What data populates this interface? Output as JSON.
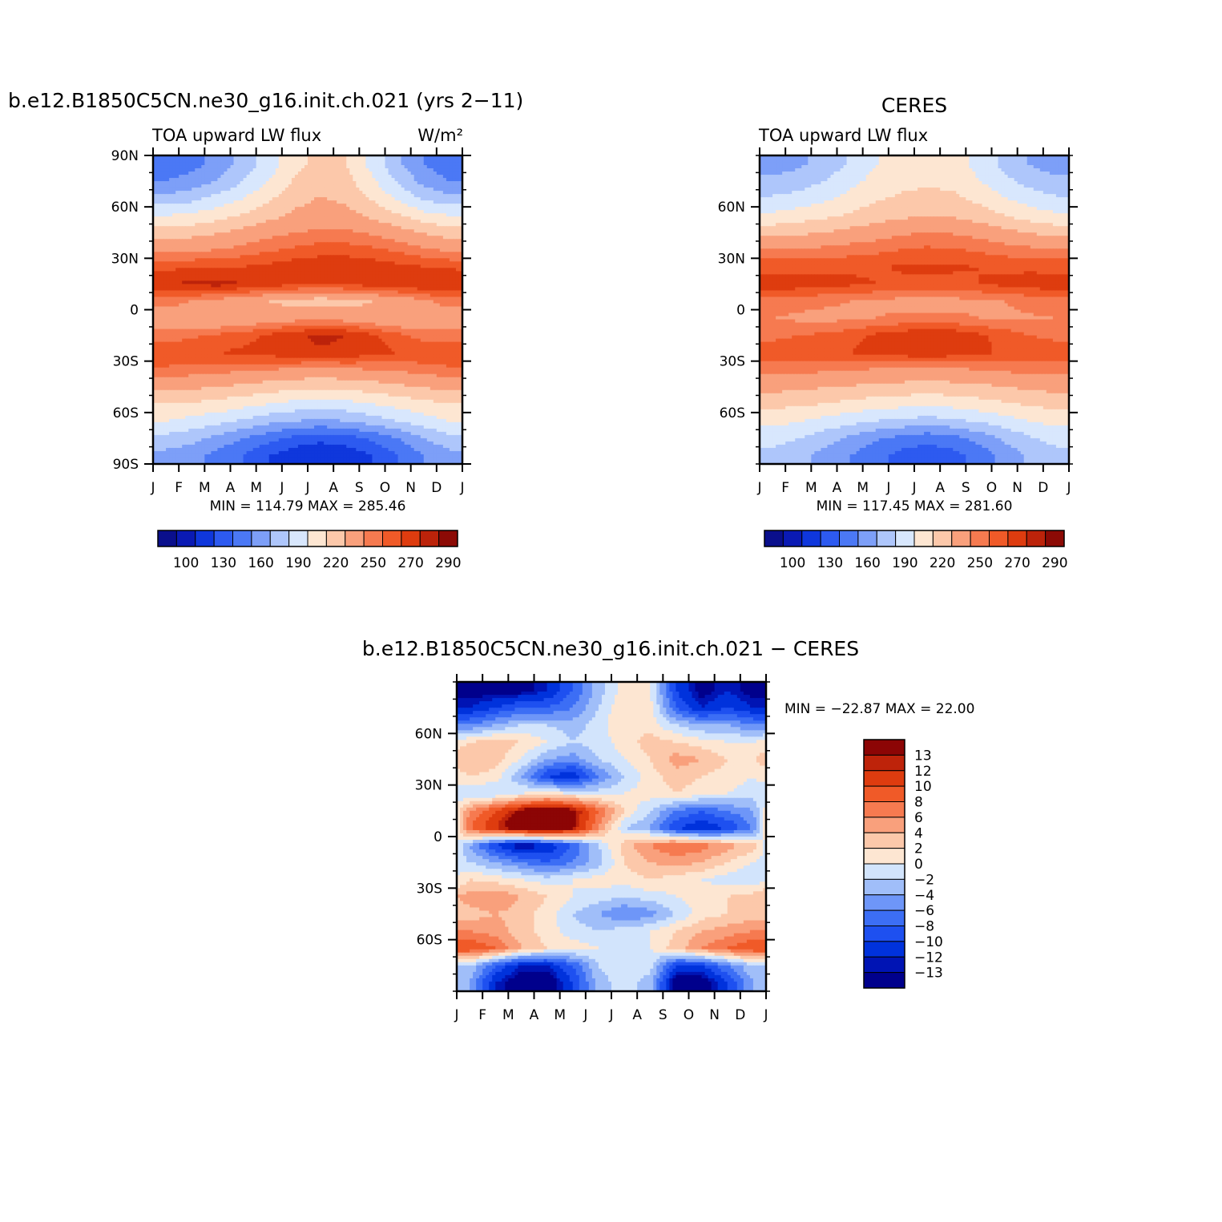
{
  "panels": {
    "model": {
      "title": "b.e12.B1850C5CN.ne30_g16.init.ch.021 (yrs 2−11)",
      "left_label": "TOA upward LW flux",
      "units_label": "W/m²",
      "minmax": "MIN = 114.79 MAX = 285.46"
    },
    "obs": {
      "title": "CERES",
      "left_label": "TOA upward LW flux",
      "minmax": "MIN = 117.45 MAX = 281.60"
    },
    "diff": {
      "title": "b.e12.B1850C5CN.ne30_g16.init.ch.021 − CERES",
      "minmax": "MIN = −22.87 MAX =  22.00"
    }
  },
  "chart_data": [
    {
      "type": "heatmap",
      "title": "b.e12.B1850C5CN.ne30_g16.init.ch.021 (yrs 2−11)",
      "subtitle": "TOA upward LW flux",
      "units": "W/m²",
      "x_tick_labels": [
        "J",
        "F",
        "M",
        "A",
        "M",
        "J",
        "J",
        "A",
        "S",
        "O",
        "N",
        "D",
        "J"
      ],
      "y_tick_labels": [
        "90S",
        "60S",
        "30S",
        "0",
        "30N",
        "60N",
        "90N"
      ],
      "y_tick_values": [
        -90,
        -60,
        -30,
        0,
        30,
        60,
        90
      ],
      "xlim": [
        0,
        12
      ],
      "ylim": [
        -90,
        90
      ],
      "min": 114.79,
      "max": 285.46,
      "colorbar_labels": [
        "100",
        "130",
        "160",
        "190",
        "220",
        "250",
        "270",
        "290"
      ],
      "months": [
        "Jan",
        "Feb",
        "Mar",
        "Apr",
        "May",
        "Jun",
        "Jul",
        "Aug",
        "Sep",
        "Oct",
        "Nov",
        "Dec"
      ],
      "latitudes": [
        -85,
        -75,
        -65,
        -55,
        -45,
        -35,
        -25,
        -15,
        -5,
        5,
        15,
        25,
        35,
        45,
        55,
        65,
        75,
        85
      ],
      "values": [
        [
          170,
          165,
          155,
          145,
          130,
          120,
          115,
          120,
          130,
          145,
          160,
          170
        ],
        [
          185,
          180,
          170,
          160,
          150,
          140,
          135,
          138,
          148,
          160,
          175,
          185
        ],
        [
          205,
          200,
          195,
          188,
          180,
          175,
          172,
          175,
          182,
          190,
          198,
          205
        ],
        [
          220,
          218,
          215,
          210,
          205,
          200,
          198,
          200,
          205,
          210,
          215,
          220
        ],
        [
          240,
          238,
          235,
          232,
          228,
          225,
          223,
          225,
          228,
          232,
          236,
          240
        ],
        [
          258,
          256,
          254,
          252,
          250,
          248,
          246,
          248,
          250,
          252,
          255,
          258
        ],
        [
          268,
          268,
          270,
          272,
          275,
          278,
          279,
          278,
          274,
          270,
          268,
          268
        ],
        [
          255,
          258,
          262,
          266,
          272,
          278,
          282,
          280,
          272,
          263,
          256,
          254
        ],
        [
          242,
          238,
          235,
          238,
          242,
          245,
          246,
          244,
          240,
          236,
          238,
          242
        ],
        [
          255,
          250,
          245,
          240,
          235,
          230,
          228,
          230,
          235,
          240,
          248,
          255
        ],
        [
          280,
          282,
          284,
          280,
          276,
          272,
          270,
          272,
          275,
          278,
          280,
          281
        ],
        [
          268,
          268,
          268,
          270,
          273,
          276,
          278,
          278,
          276,
          273,
          270,
          268
        ],
        [
          248,
          248,
          250,
          254,
          258,
          262,
          265,
          265,
          262,
          258,
          252,
          248
        ],
        [
          228,
          230,
          234,
          240,
          246,
          250,
          252,
          252,
          248,
          242,
          234,
          228
        ],
        [
          205,
          208,
          214,
          222,
          230,
          238,
          242,
          240,
          232,
          222,
          210,
          205
        ],
        [
          180,
          185,
          195,
          205,
          218,
          230,
          236,
          232,
          218,
          202,
          188,
          180
        ],
        [
          160,
          165,
          175,
          190,
          205,
          222,
          230,
          225,
          208,
          188,
          170,
          160
        ],
        [
          150,
          155,
          165,
          180,
          198,
          215,
          225,
          220,
          200,
          178,
          160,
          150
        ]
      ]
    },
    {
      "type": "heatmap",
      "title": "CERES",
      "subtitle": "TOA upward LW flux",
      "x_tick_labels": [
        "J",
        "F",
        "M",
        "A",
        "M",
        "J",
        "J",
        "A",
        "S",
        "O",
        "N",
        "D",
        "J"
      ],
      "y_tick_labels": [
        "60S",
        "30S",
        "0",
        "30N",
        "60N"
      ],
      "y_tick_values": [
        -60,
        -30,
        0,
        30,
        60
      ],
      "xlim": [
        0,
        12
      ],
      "ylim": [
        -90,
        90
      ],
      "min": 117.45,
      "max": 281.6,
      "colorbar_labels": [
        "100",
        "130",
        "160",
        "190",
        "220",
        "250",
        "270",
        "290"
      ],
      "months": [
        "Jan",
        "Feb",
        "Mar",
        "Apr",
        "May",
        "Jun",
        "Jul",
        "Aug",
        "Sep",
        "Oct",
        "Nov",
        "Dec"
      ],
      "latitudes": [
        -85,
        -75,
        -65,
        -55,
        -45,
        -35,
        -25,
        -15,
        -5,
        5,
        15,
        25,
        35,
        45,
        55,
        65,
        75,
        85
      ],
      "values": [
        [
          185,
          180,
          170,
          160,
          150,
          140,
          135,
          140,
          150,
          165,
          178,
          185
        ],
        [
          195,
          190,
          182,
          172,
          162,
          155,
          150,
          155,
          165,
          178,
          188,
          195
        ],
        [
          210,
          206,
          200,
          195,
          190,
          186,
          184,
          186,
          192,
          198,
          205,
          210
        ],
        [
          225,
          222,
          220,
          216,
          212,
          210,
          208,
          210,
          214,
          218,
          222,
          225
        ],
        [
          240,
          238,
          236,
          234,
          232,
          230,
          229,
          230,
          232,
          235,
          238,
          240
        ],
        [
          255,
          254,
          252,
          250,
          249,
          248,
          247,
          248,
          250,
          252,
          254,
          255
        ],
        [
          264,
          265,
          267,
          270,
          274,
          276,
          277,
          276,
          273,
          268,
          265,
          264
        ],
        [
          258,
          260,
          262,
          266,
          272,
          276,
          280,
          278,
          272,
          266,
          260,
          258
        ],
        [
          250,
          248,
          247,
          248,
          250,
          252,
          253,
          252,
          250,
          248,
          249,
          250
        ],
        [
          255,
          254,
          252,
          250,
          248,
          246,
          245,
          246,
          248,
          250,
          253,
          255
        ],
        [
          277,
          276,
          274,
          272,
          270,
          268,
          268,
          268,
          270,
          273,
          276,
          277
        ],
        [
          266,
          266,
          267,
          268,
          269,
          271,
          272,
          271,
          270,
          268,
          267,
          266
        ],
        [
          252,
          252,
          253,
          255,
          257,
          260,
          262,
          261,
          258,
          255,
          253,
          252
        ],
        [
          230,
          232,
          235,
          240,
          244,
          248,
          250,
          249,
          246,
          240,
          234,
          230
        ],
        [
          208,
          212,
          216,
          222,
          228,
          232,
          234,
          233,
          228,
          220,
          212,
          208
        ],
        [
          192,
          196,
          202,
          210,
          218,
          222,
          224,
          223,
          216,
          206,
          198,
          192
        ],
        [
          178,
          182,
          190,
          200,
          210,
          216,
          218,
          216,
          206,
          194,
          184,
          178
        ],
        [
          168,
          172,
          180,
          192,
          204,
          212,
          215,
          212,
          200,
          186,
          174,
          168
        ]
      ]
    },
    {
      "type": "heatmap",
      "title": "b.e12.B1850C5CN.ne30_g16.init.ch.021 − CERES",
      "x_tick_labels": [
        "J",
        "F",
        "M",
        "A",
        "M",
        "J",
        "J",
        "A",
        "S",
        "O",
        "N",
        "D",
        "J"
      ],
      "y_tick_labels": [
        "60S",
        "30S",
        "0",
        "30N",
        "60N"
      ],
      "y_tick_values": [
        -60,
        -30,
        0,
        30,
        60
      ],
      "xlim": [
        0,
        12
      ],
      "ylim": [
        -90,
        90
      ],
      "min": -22.87,
      "max": 22.0,
      "colorbar_labels": [
        "13",
        "12",
        "10",
        "8",
        "6",
        "4",
        "2",
        "0",
        "−2",
        "−4",
        "−6",
        "−8",
        "−10",
        "−12",
        "−13"
      ],
      "months": [
        "Jan",
        "Feb",
        "Mar",
        "Apr",
        "May",
        "Jun",
        "Jul",
        "Aug",
        "Sep",
        "Oct",
        "Nov",
        "Dec"
      ],
      "latitudes": [
        -85,
        -75,
        -65,
        -55,
        -45,
        -35,
        -25,
        -15,
        -5,
        5,
        15,
        25,
        35,
        45,
        55,
        65,
        75,
        85
      ],
      "values": [
        [
          -4,
          -12,
          -15,
          -15,
          -10,
          -3,
          -1,
          -3,
          -15,
          -15,
          -10,
          -4
        ],
        [
          -2,
          -8,
          -12,
          -12,
          -8,
          -2,
          0,
          -1,
          -10,
          -10,
          -6,
          -2
        ],
        [
          10,
          8,
          4,
          2,
          1,
          0,
          -1,
          0,
          3,
          6,
          8,
          10
        ],
        [
          6,
          5,
          3,
          1,
          -1,
          -2,
          -1,
          0,
          2,
          4,
          5,
          6
        ],
        [
          3,
          4,
          3,
          1,
          -2,
          -4,
          -6,
          -5,
          -2,
          1,
          2,
          3
        ],
        [
          5,
          6,
          4,
          2,
          0,
          -1,
          -2,
          -1,
          0,
          1,
          2,
          3
        ],
        [
          2,
          1,
          0,
          -1,
          0,
          1,
          1,
          2,
          1,
          0,
          -1,
          -2
        ],
        [
          -2,
          -4,
          -6,
          -8,
          -6,
          -3,
          2,
          4,
          5,
          4,
          2,
          0
        ],
        [
          -4,
          -10,
          -14,
          -12,
          -8,
          -2,
          3,
          6,
          8,
          7,
          5,
          3
        ],
        [
          8,
          12,
          16,
          18,
          14,
          6,
          -2,
          -4,
          -10,
          -12,
          -10,
          -6
        ],
        [
          6,
          10,
          14,
          16,
          14,
          8,
          2,
          -2,
          -6,
          -8,
          -6,
          -4
        ],
        [
          -2,
          -2,
          0,
          1,
          0,
          -1,
          0,
          1,
          2,
          1,
          0,
          -1
        ],
        [
          2,
          1,
          -4,
          -10,
          -12,
          -6,
          -2,
          1,
          3,
          2,
          1,
          0
        ],
        [
          4,
          3,
          0,
          -4,
          -5,
          -2,
          0,
          2,
          5,
          4,
          2,
          2
        ],
        [
          2,
          3,
          2,
          0,
          -2,
          -1,
          1,
          3,
          2,
          1,
          0,
          0
        ],
        [
          -6,
          -4,
          -2,
          -2,
          -3,
          -1,
          2,
          1,
          -2,
          -4,
          -4,
          -6
        ],
        [
          -12,
          -10,
          -8,
          -8,
          -6,
          -2,
          2,
          1,
          -8,
          -12,
          -10,
          -12
        ],
        [
          -14,
          -14,
          -14,
          -12,
          -8,
          -3,
          1,
          0,
          -10,
          -14,
          -12,
          -14
        ]
      ]
    }
  ]
}
